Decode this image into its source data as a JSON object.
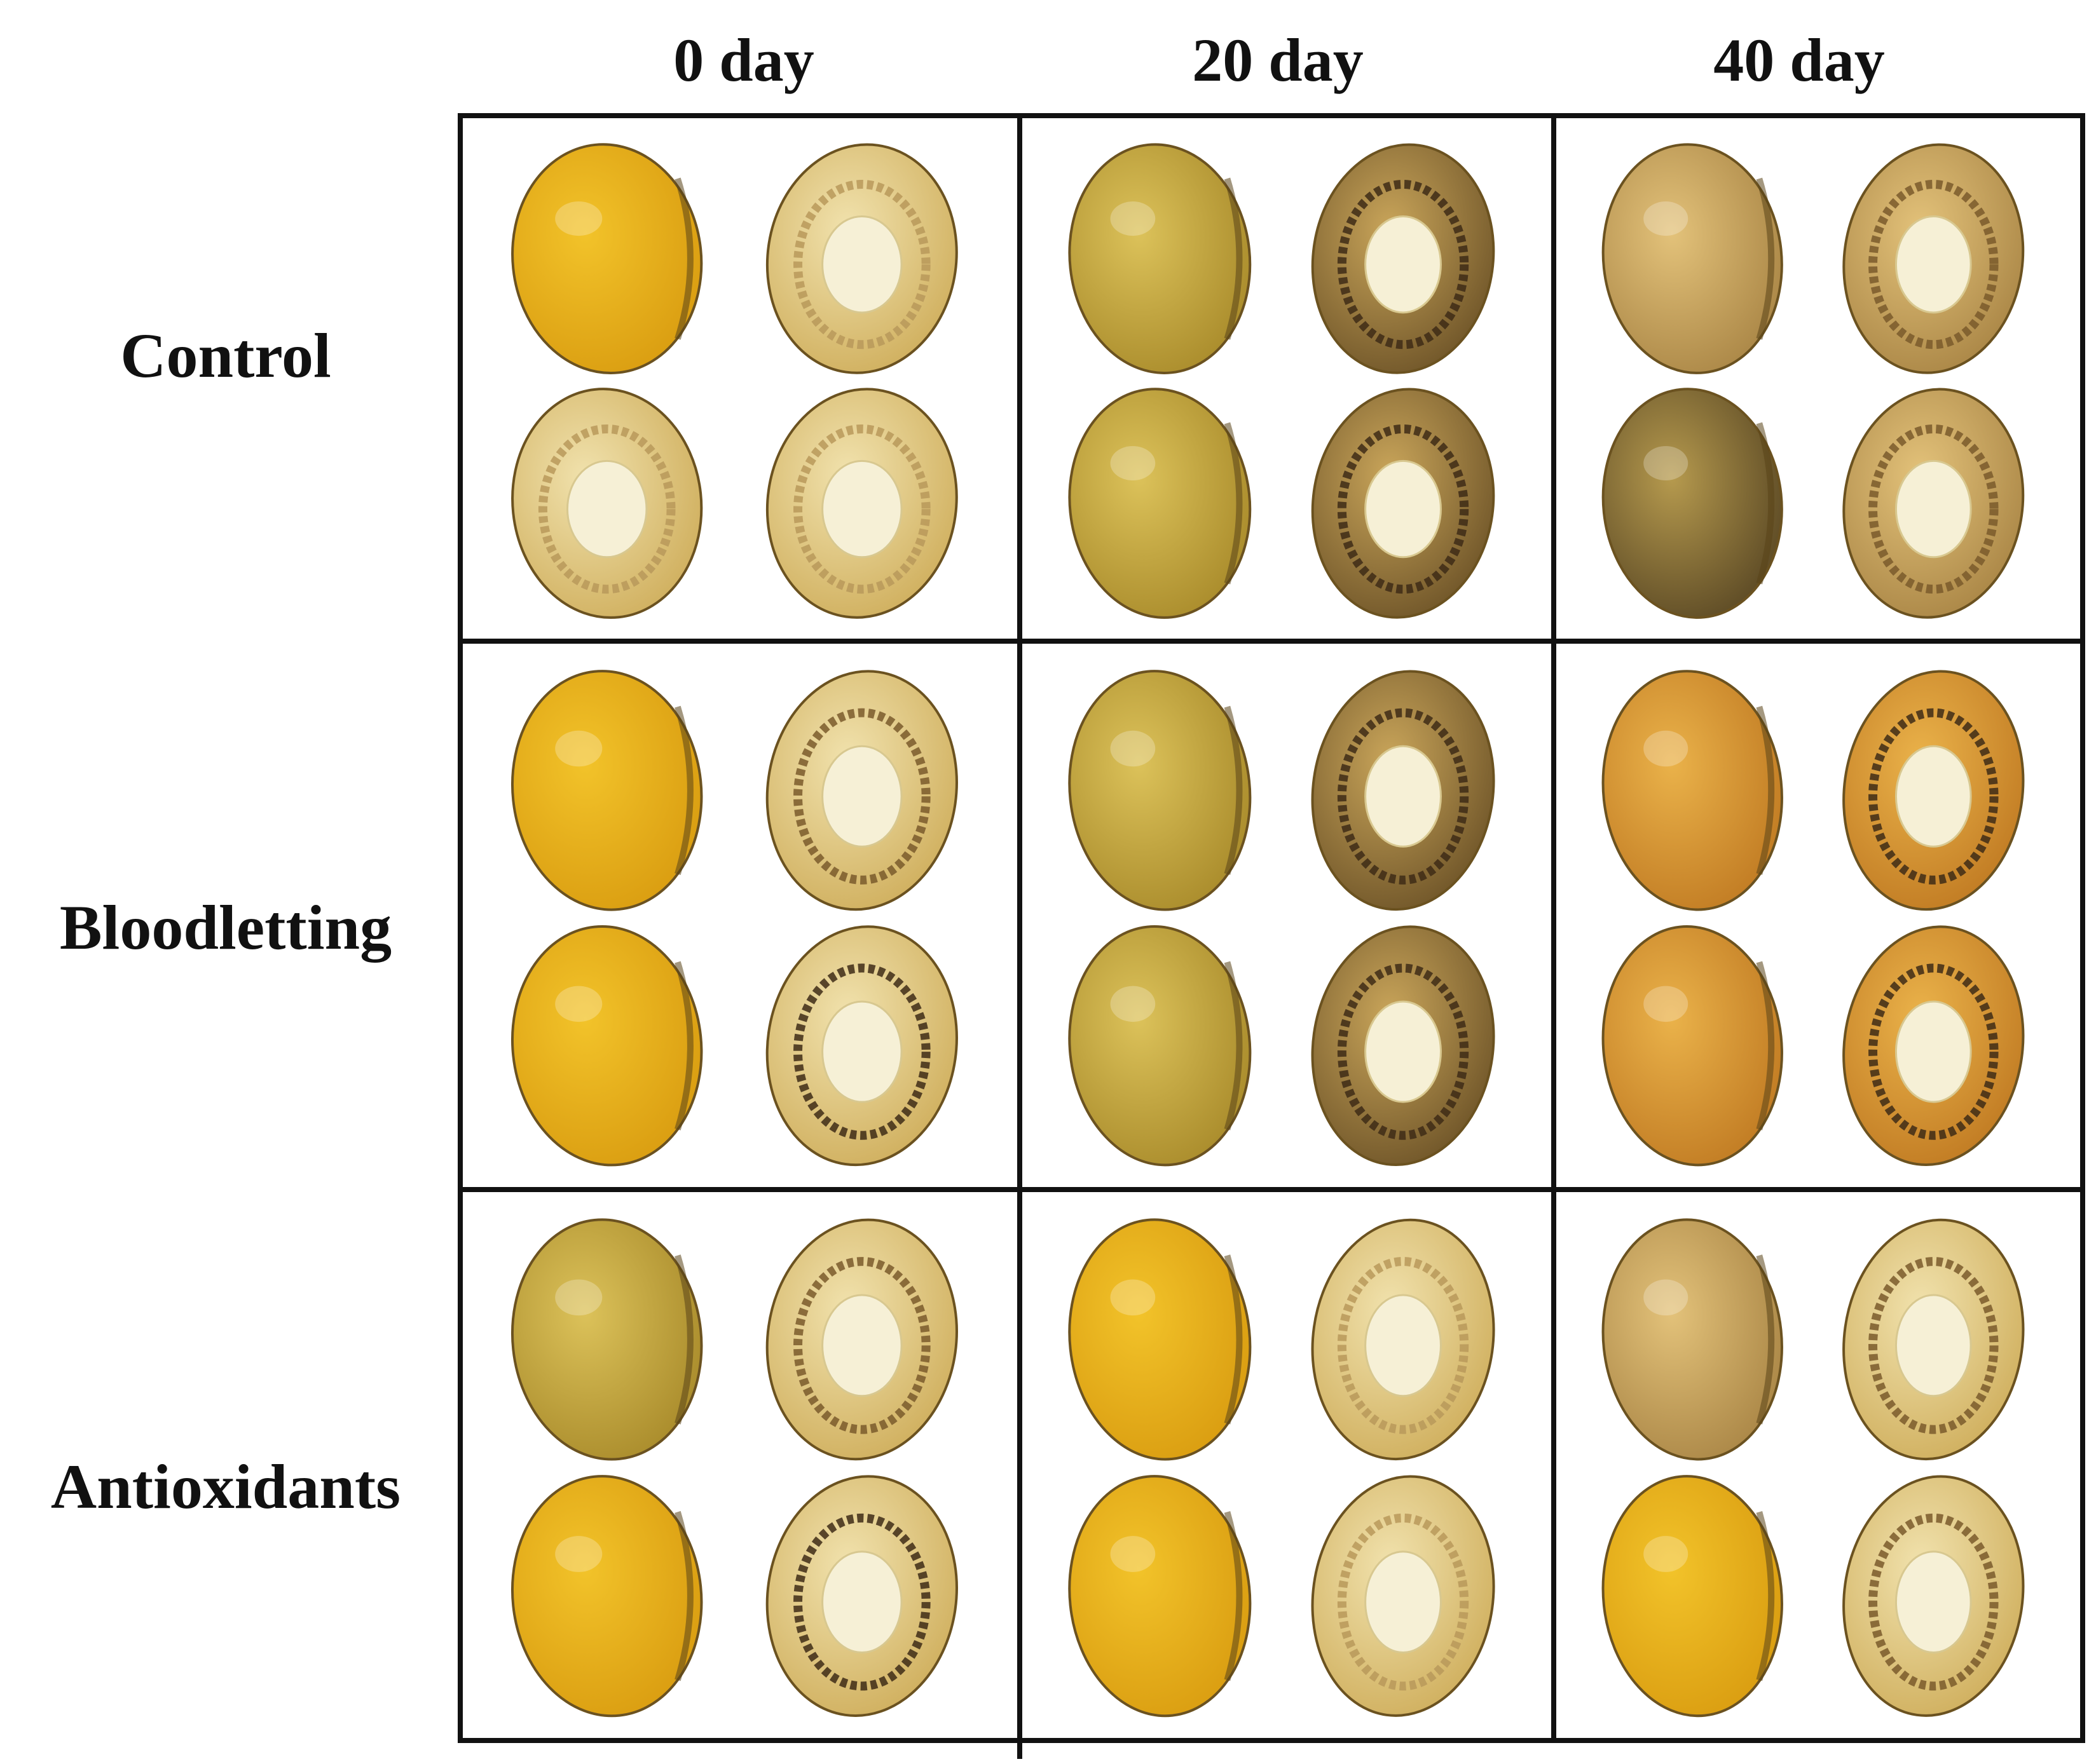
{
  "columns": [
    "0 day",
    "20 day",
    "40 day"
  ],
  "rows": [
    "Control",
    "Bloodletting",
    "Antioxidants"
  ],
  "colors": {
    "border": "#111111",
    "gold": "#e8b21a",
    "pale": "#f0e3b8",
    "kernel": "#f6f0d6",
    "dark_ring": "#4a3a1e",
    "browned": "#8a6a2a"
  },
  "cells": [
    {
      "row": "Control",
      "col": "0 day",
      "seeds": [
        {
          "type": "whole",
          "tone": "gold"
        },
        {
          "type": "cut",
          "tone": "pale",
          "ring": "light"
        },
        {
          "type": "cut",
          "tone": "pale",
          "ring": "light"
        },
        {
          "type": "cut",
          "tone": "pale",
          "ring": "light"
        }
      ]
    },
    {
      "row": "Control",
      "col": "20 day",
      "seeds": [
        {
          "type": "whole",
          "tone": "olive"
        },
        {
          "type": "cut",
          "tone": "browned",
          "ring": "dark"
        },
        {
          "type": "whole",
          "tone": "olive"
        },
        {
          "type": "cut",
          "tone": "browned",
          "ring": "dark"
        }
      ]
    },
    {
      "row": "Control",
      "col": "40 day",
      "seeds": [
        {
          "type": "whole",
          "tone": "tan"
        },
        {
          "type": "cut",
          "tone": "tan",
          "ring": "medium"
        },
        {
          "type": "whole",
          "tone": "dark"
        },
        {
          "type": "cut",
          "tone": "tan",
          "ring": "medium"
        }
      ]
    },
    {
      "row": "Bloodletting",
      "col": "0 day",
      "seeds": [
        {
          "type": "whole",
          "tone": "gold"
        },
        {
          "type": "cut",
          "tone": "pale",
          "ring": "medium"
        },
        {
          "type": "whole",
          "tone": "gold"
        },
        {
          "type": "cut",
          "tone": "pale",
          "ring": "dark"
        }
      ]
    },
    {
      "row": "Bloodletting",
      "col": "20 day",
      "seeds": [
        {
          "type": "whole",
          "tone": "olive"
        },
        {
          "type": "cut",
          "tone": "browned",
          "ring": "dark"
        },
        {
          "type": "whole",
          "tone": "olive"
        },
        {
          "type": "cut",
          "tone": "browned",
          "ring": "dark"
        }
      ]
    },
    {
      "row": "Bloodletting",
      "col": "40 day",
      "seeds": [
        {
          "type": "whole",
          "tone": "orange"
        },
        {
          "type": "cut",
          "tone": "orange",
          "ring": "dark"
        },
        {
          "type": "whole",
          "tone": "orange"
        },
        {
          "type": "cut",
          "tone": "orange",
          "ring": "dark"
        }
      ]
    },
    {
      "row": "Antioxidants",
      "col": "0 day",
      "seeds": [
        {
          "type": "whole",
          "tone": "olive"
        },
        {
          "type": "cut",
          "tone": "pale",
          "ring": "medium"
        },
        {
          "type": "whole",
          "tone": "gold"
        },
        {
          "type": "cut",
          "tone": "pale",
          "ring": "dark"
        }
      ]
    },
    {
      "row": "Antioxidants",
      "col": "20 day",
      "seeds": [
        {
          "type": "whole",
          "tone": "gold"
        },
        {
          "type": "cut",
          "tone": "pale",
          "ring": "light"
        },
        {
          "type": "whole",
          "tone": "gold"
        },
        {
          "type": "cut",
          "tone": "pale",
          "ring": "light"
        }
      ]
    },
    {
      "row": "Antioxidants",
      "col": "40 day",
      "seeds": [
        {
          "type": "whole",
          "tone": "tan"
        },
        {
          "type": "cut",
          "tone": "pale",
          "ring": "medium"
        },
        {
          "type": "whole",
          "tone": "gold"
        },
        {
          "type": "cut",
          "tone": "pale",
          "ring": "medium"
        }
      ]
    }
  ]
}
